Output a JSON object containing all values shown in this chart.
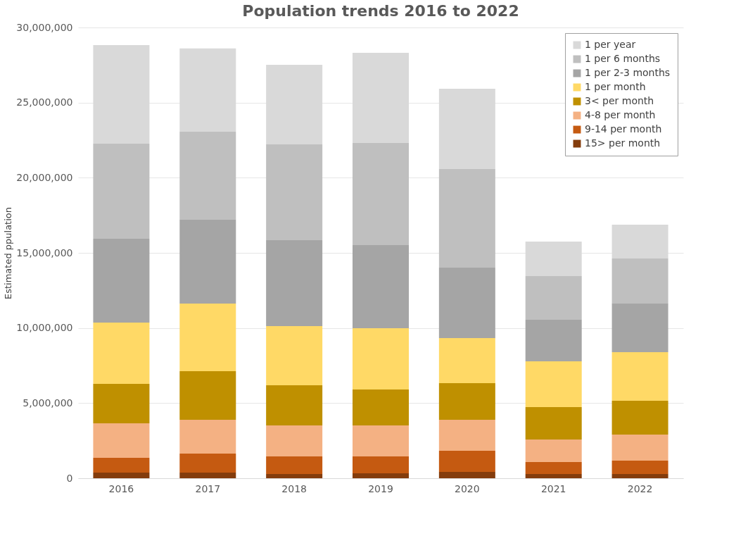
{
  "chart_data": {
    "type": "bar",
    "stacked": true,
    "title": "Population trends 2016 to 2022",
    "ylabel": "Estimated ppulation",
    "categories": [
      "2016",
      "2017",
      "2018",
      "2019",
      "2020",
      "2021",
      "2022"
    ],
    "series": [
      {
        "name": "15> per month",
        "color": "#843c0c",
        "values": [
          370000,
          370000,
          280000,
          330000,
          420000,
          280000,
          280000
        ]
      },
      {
        "name": "9-14 per month",
        "color": "#c55a11",
        "values": [
          990000,
          1270000,
          1170000,
          1120000,
          1410000,
          800000,
          890000
        ]
      },
      {
        "name": "4-8 per month",
        "color": "#f4b183",
        "values": [
          2300000,
          2250000,
          2070000,
          2070000,
          2060000,
          1500000,
          1740000
        ]
      },
      {
        "name": "3< per month",
        "color": "#bf9000",
        "values": [
          2620000,
          3240000,
          2670000,
          2390000,
          2440000,
          2150000,
          2250000
        ]
      },
      {
        "name": "1 per month",
        "color": "#ffd966",
        "values": [
          4080000,
          4500000,
          3940000,
          4070000,
          3000000,
          3050000,
          3230000
        ]
      },
      {
        "name": "1 per 2-3 months",
        "color": "#a5a5a5",
        "values": [
          5580000,
          5570000,
          5710000,
          5530000,
          4690000,
          2770000,
          3240000
        ]
      },
      {
        "name": "1 per 6 months",
        "color": "#bfbfbf",
        "values": [
          6330000,
          5860000,
          6380000,
          6800000,
          6560000,
          2900000,
          3000000
        ]
      },
      {
        "name": "1 per year",
        "color": "#d9d9d9",
        "values": [
          6560000,
          5540000,
          5300000,
          6000000,
          5340000,
          2300000,
          2250000
        ]
      }
    ],
    "ylim": [
      0,
      30000000
    ],
    "yticks": [
      0,
      {
        "value": 5000000,
        "label": "5,000,000"
      },
      {
        "value": 10000000,
        "label": "10,000,000"
      },
      {
        "value": 15000000,
        "label": "15,000,000"
      },
      {
        "value": 20000000,
        "label": "20,000,000"
      },
      {
        "value": 25000000,
        "label": "25,000,000"
      },
      {
        "value": 30000000,
        "label": "30,000,000"
      }
    ],
    "grid": "y",
    "legend": "top right"
  }
}
